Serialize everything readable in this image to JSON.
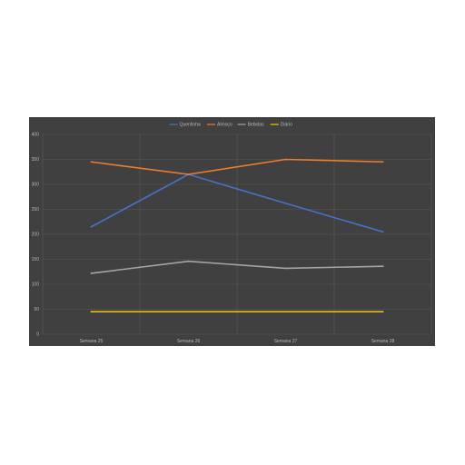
{
  "chart_data": {
    "type": "line",
    "categories": [
      "Semana 25",
      "Semana 26",
      "Semana 27",
      "Semana 28"
    ],
    "series": [
      {
        "name": "Quentinha",
        "values": [
          215,
          320,
          262,
          205
        ],
        "color": "#4472c4"
      },
      {
        "name": "Almoço",
        "values": [
          345,
          320,
          350,
          345
        ],
        "color": "#ed7d31"
      },
      {
        "name": "Bebidas",
        "values": [
          122,
          146,
          132,
          136
        ],
        "color": "#a5a5a5"
      },
      {
        "name": "Diário",
        "values": [
          45,
          45,
          45,
          45
        ],
        "color": "#ffc000"
      }
    ],
    "ylim": [
      0,
      400
    ],
    "yticks": [
      "0",
      "50",
      "100",
      "150",
      "200",
      "250",
      "300",
      "350",
      "400"
    ],
    "ytick_values": [
      0,
      50,
      100,
      150,
      200,
      250,
      300,
      350,
      400
    ],
    "grid": true,
    "legend_position": "top",
    "colors": {
      "background": "#404040",
      "gridline": "#595959",
      "text": "#b8b8b8"
    }
  }
}
